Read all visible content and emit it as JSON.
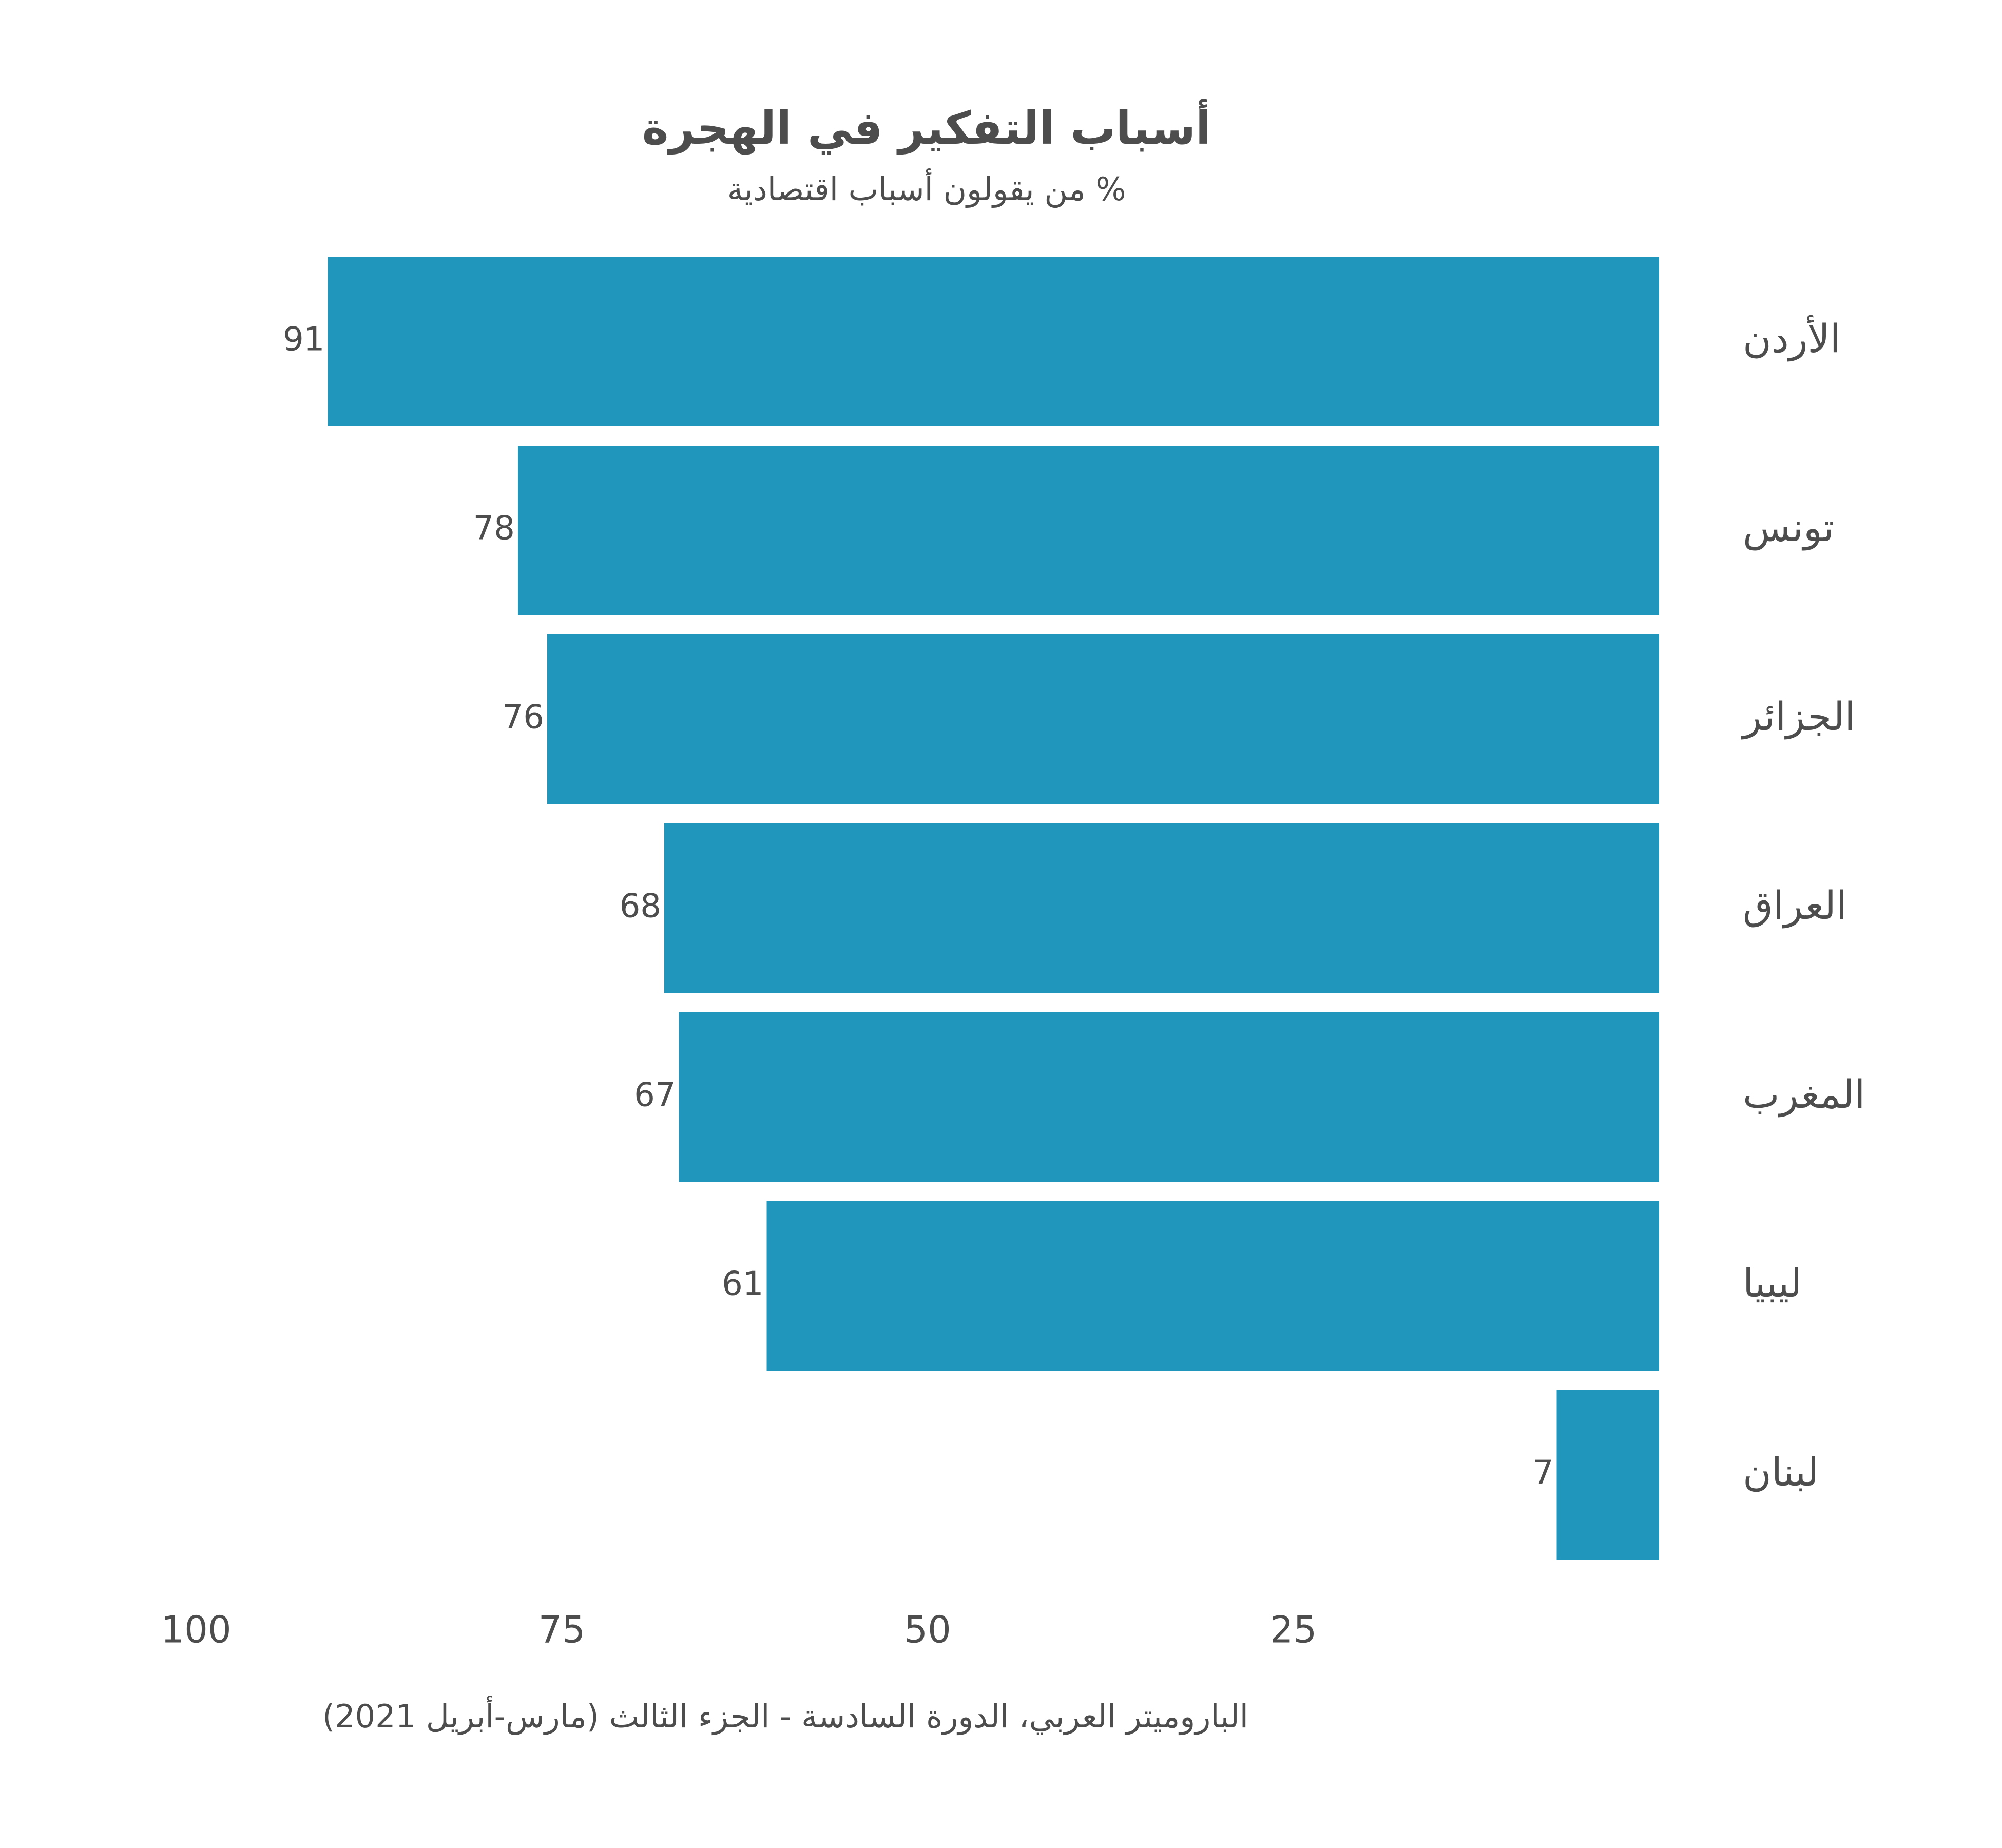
{
  "chart_data": {
    "type": "bar",
    "orientation": "horizontal",
    "x_axis_reversed": true,
    "title": "أسباب التفكير في الهجرة",
    "subtitle": "% من يقولون أسباب اقتصادية",
    "caption": "الباروميتر العربي، الدورة السادسة - الجزء الثالث (مارس-أبريل 2021)",
    "categories": [
      "الأردن",
      "تونس",
      "الجزائر",
      "العراق",
      "المغرب",
      "ليبيا",
      "لبنان"
    ],
    "values": [
      91,
      78,
      76,
      68,
      67,
      61,
      7
    ],
    "value_labels": [
      "91",
      "78",
      "76",
      "68",
      "67",
      "61",
      "7"
    ],
    "x_ticks": [
      100,
      75,
      50,
      25
    ],
    "x_tick_labels": [
      "100",
      "75",
      "50",
      "25"
    ],
    "xlim": [
      0,
      100
    ],
    "bar_color": "#2196BC",
    "text_color": "#4d4d4d",
    "grid": false,
    "legend": "none"
  }
}
